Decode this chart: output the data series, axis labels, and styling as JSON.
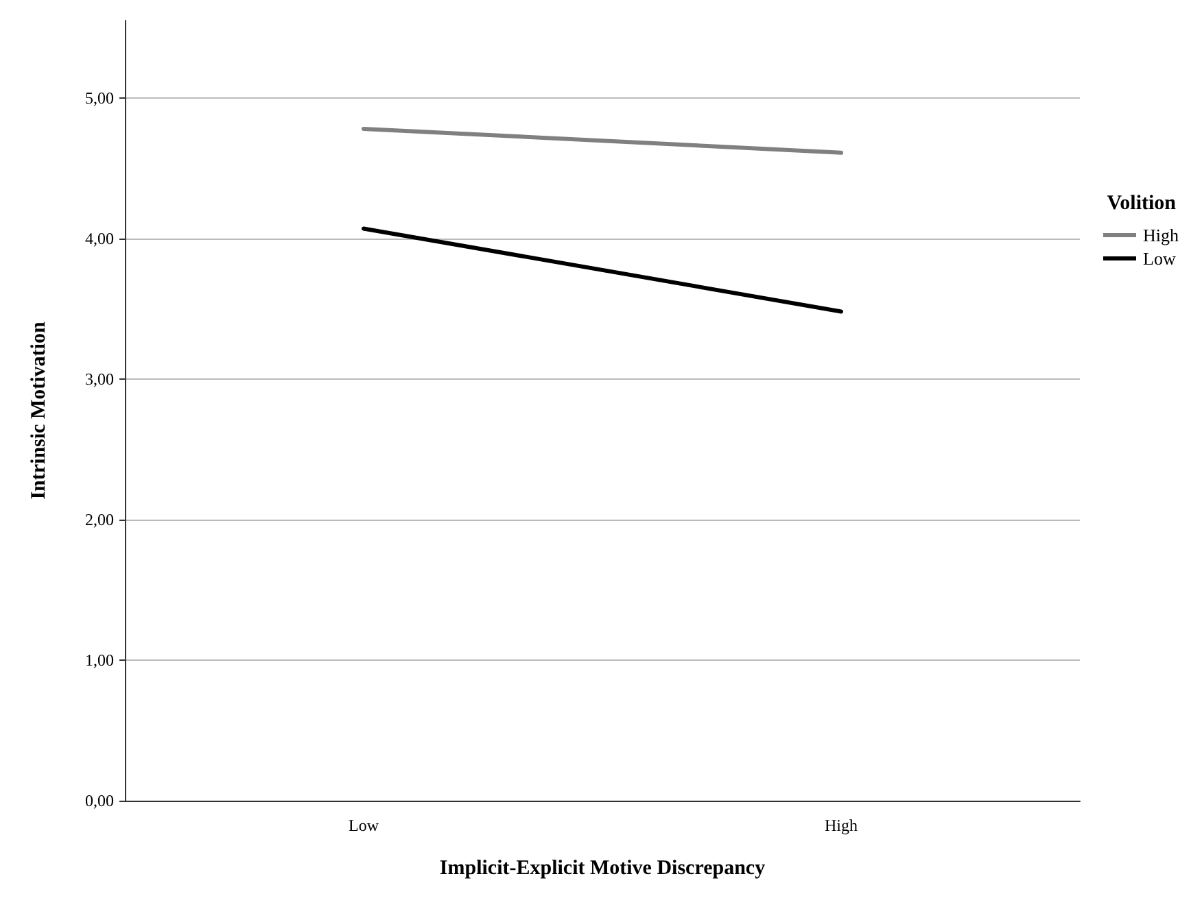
{
  "chart_data": {
    "type": "line",
    "xlabel": "Implicit-Explicit Motive Discrepancy",
    "ylabel": "Intrinsic Motivation",
    "legend_title": "Volition",
    "categories": [
      "Low",
      "High"
    ],
    "series": [
      {
        "name": "High",
        "color": "#808080",
        "values": [
          4.78,
          4.61
        ]
      },
      {
        "name": "Low",
        "color": "#000000",
        "values": [
          4.07,
          3.48
        ]
      }
    ],
    "ylim": [
      0,
      5.55
    ],
    "yticks": [
      {
        "value": 0,
        "label": "0,00"
      },
      {
        "value": 1,
        "label": "1,00"
      },
      {
        "value": 2,
        "label": "2,00"
      },
      {
        "value": 3,
        "label": "3,00"
      },
      {
        "value": 4,
        "label": "4,00"
      },
      {
        "value": 5,
        "label": "5,00"
      }
    ],
    "grid": "y",
    "legend": "right",
    "marker": "none",
    "line_style": "solid"
  }
}
